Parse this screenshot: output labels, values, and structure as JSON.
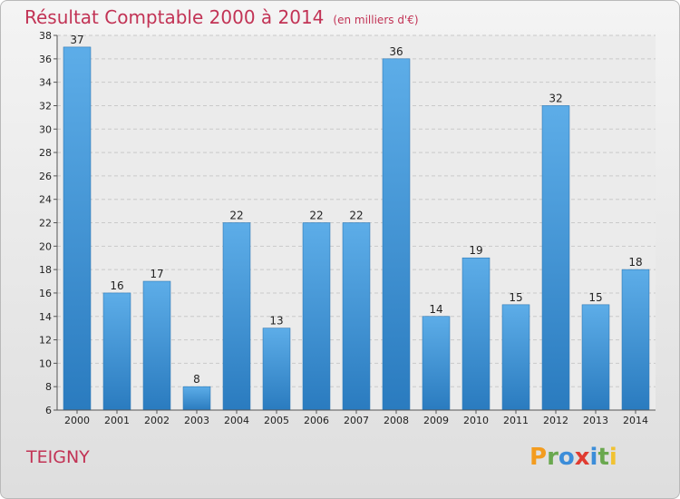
{
  "header": {
    "title": "Résultat Comptable 2000 à 2014",
    "unit": "(en milliers d'€)"
  },
  "commune": "TEIGNY",
  "logo": {
    "letters": [
      "P",
      "r",
      "o",
      "x",
      "i",
      "t",
      "i"
    ],
    "colors": [
      "#f39c1f",
      "#6aa84f",
      "#3c8dd9",
      "#e03c31",
      "#3c8dd9",
      "#6aa84f",
      "#f1c232"
    ]
  },
  "colors": {
    "bar_top": "#5dade8",
    "bar_bottom": "#2a7bbf",
    "accent": "#c23355",
    "plot_bg": "#ebebeb"
  },
  "chart_data": {
    "type": "bar",
    "title": "Résultat Comptable 2000 à 2014",
    "xlabel": "",
    "ylabel": "",
    "categories": [
      "2000",
      "2001",
      "2002",
      "2003",
      "2004",
      "2005",
      "2006",
      "2007",
      "2008",
      "2009",
      "2010",
      "2011",
      "2012",
      "2013",
      "2014"
    ],
    "values": [
      37,
      16,
      17,
      8,
      22,
      13,
      22,
      22,
      36,
      14,
      19,
      15,
      32,
      15,
      18
    ],
    "ylim": [
      6,
      38
    ],
    "yticks": [
      6,
      8,
      10,
      12,
      14,
      16,
      18,
      20,
      22,
      24,
      26,
      28,
      30,
      32,
      34,
      36,
      38
    ],
    "grid": true
  }
}
